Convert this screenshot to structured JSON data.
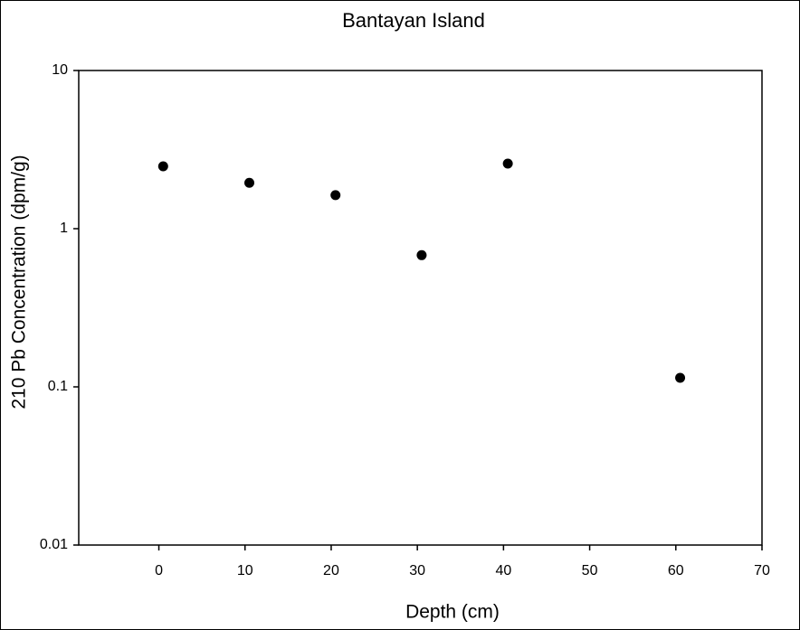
{
  "chart_data": {
    "type": "scatter",
    "title": "Bantayan Island",
    "x_label": "Depth (cm)",
    "y_label": "210 Pb Concentration (dpm/g)",
    "x": [
      0.5,
      10.5,
      20.5,
      30.5,
      40.5,
      60.5
    ],
    "values": [
      2.48,
      1.95,
      1.63,
      0.68,
      2.58,
      0.114
    ],
    "color": "#000000",
    "xlim": [
      -9.3,
      70
    ],
    "xticks": [
      0,
      10,
      20,
      30,
      40,
      50,
      60,
      70
    ],
    "ylim": [
      0.01,
      10
    ],
    "yticks": [
      0.01,
      0.1,
      1,
      10
    ],
    "y_scale": "log",
    "grid": false
  }
}
